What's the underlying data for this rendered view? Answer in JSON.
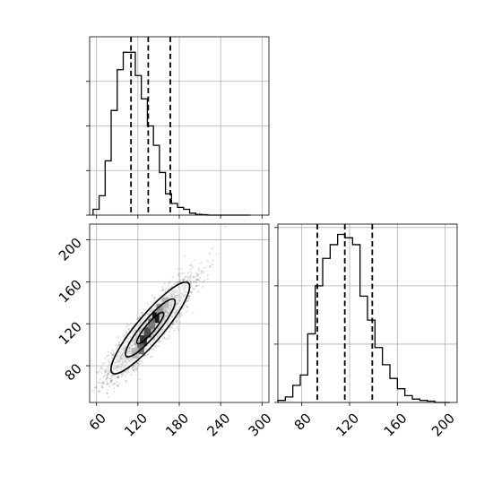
{
  "chart_data": {
    "type": "corner",
    "grid": true,
    "panels": [
      {
        "id": "hist_x",
        "type": "histogram",
        "xlim": [
          50,
          310
        ],
        "ylim": [
          0,
          460
        ],
        "xticks": [
          60,
          120,
          180,
          240,
          300
        ],
        "yticks": [
          0,
          115,
          230,
          345
        ],
        "bin_edges": [
          55,
          63.75,
          72.5,
          81.25,
          90,
          98.75,
          107.5,
          116.25,
          125,
          133.75,
          142.5,
          151.25,
          160,
          168.75,
          177.5,
          186.25,
          195,
          203.75,
          212.5,
          221.25,
          230,
          238.75,
          247.5,
          256.25,
          265,
          273.75,
          282.5
        ],
        "counts": [
          15,
          50,
          140,
          270,
          375,
          420,
          420,
          360,
          300,
          230,
          180,
          110,
          55,
          30,
          20,
          15,
          5,
          2,
          1,
          0,
          0,
          0,
          0,
          0,
          0,
          0
        ],
        "quantiles": [
          110,
          135,
          167
        ]
      },
      {
        "id": "scatter_xy",
        "type": "scatter_density",
        "xlim": [
          50,
          310
        ],
        "ylim": [
          45,
          215
        ],
        "xticks": [
          60,
          120,
          180,
          240,
          300
        ],
        "yticks": [
          80,
          120,
          160,
          200
        ],
        "xtick_labels": [
          "60",
          "120",
          "180",
          "240",
          "300"
        ],
        "ytick_labels": [
          "80",
          "120",
          "160",
          "200"
        ],
        "points": {
          "mean_x": 138,
          "mean_y": 116,
          "sd_x": 30,
          "sd_y": 23,
          "correlation": 0.9,
          "count": 2500
        },
        "density_cells": [
          {
            "x": 128,
            "y": 104,
            "level": 0.85
          },
          {
            "x": 134,
            "y": 112,
            "level": 0.75
          },
          {
            "x": 146,
            "y": 126,
            "level": 0.95
          },
          {
            "x": 124,
            "y": 96,
            "level": 0.6
          },
          {
            "x": 152,
            "y": 134,
            "level": 0.45
          },
          {
            "x": 140,
            "y": 120,
            "level": 0.55
          },
          {
            "x": 116,
            "y": 92,
            "level": 0.3
          },
          {
            "x": 160,
            "y": 140,
            "level": 0.3
          }
        ]
      },
      {
        "id": "hist_y",
        "type": "histogram",
        "xlim": [
          60,
          210
        ],
        "ylim": [
          0,
          260
        ],
        "xticks": [
          80,
          120,
          160,
          200
        ],
        "xtick_labels": [
          "80",
          "120",
          "160",
          "200"
        ],
        "yticks": [
          0,
          85,
          170,
          255
        ],
        "bin_edges": [
          60,
          66.25,
          72.5,
          78.75,
          85,
          91.25,
          97.5,
          103.75,
          110,
          116.25,
          122.5,
          128.75,
          135,
          141.25,
          147.5,
          153.75,
          160,
          166.25,
          172.5,
          178.75,
          185,
          191.25,
          197.5,
          203.75
        ],
        "counts": [
          3,
          8,
          25,
          40,
          100,
          170,
          210,
          230,
          245,
          240,
          230,
          155,
          120,
          80,
          55,
          35,
          20,
          10,
          5,
          3,
          2,
          0,
          0
        ],
        "quantiles": [
          93,
          116,
          139
        ]
      }
    ]
  }
}
